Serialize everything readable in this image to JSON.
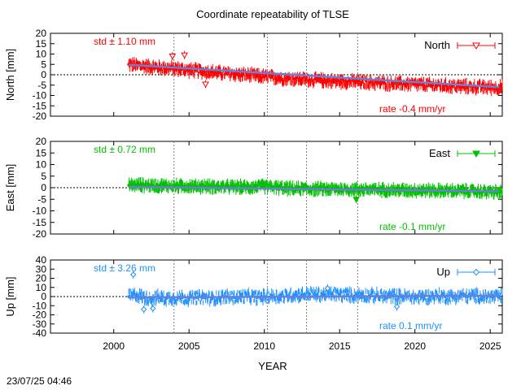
{
  "title": "Coordinate repeatability of TLSE",
  "xlabel": "YEAR",
  "footer_timestamp": "23/07/25 04:46",
  "x_ticks": [
    "2000",
    "2005",
    "2010",
    "2015",
    "2020",
    "2025"
  ],
  "colors": {
    "north": "#ff0000",
    "east": "#00c000",
    "up": "#1e90ff",
    "trend": "#6a7fd8",
    "axis": "#000000",
    "grid": "#808080"
  },
  "chart_data": [
    {
      "type": "line",
      "panel": "north",
      "ylabel": "North [mm]",
      "ylim": [
        -20,
        20
      ],
      "yticks": [
        "20",
        "15",
        "10",
        "5",
        "0",
        "-5",
        "-10",
        "-15",
        "-20"
      ],
      "xlim": [
        1995.8,
        2025.8
      ],
      "std_label": "std ± 1.10 mm",
      "rate_label": "rate -0.4 mm/yr",
      "legend": {
        "label": "North",
        "position": "top-right",
        "marker": "triangle-down-open"
      },
      "series": [
        {
          "name": "North",
          "x": [
            2001.0,
            2001.5,
            2002.0,
            2002.5,
            2003.0,
            2003.5,
            2004.0,
            2004.5,
            2005.0,
            2005.5,
            2006.0,
            2006.5,
            2007.0,
            2007.5,
            2008.0,
            2008.5,
            2009.0,
            2009.5,
            2010.0,
            2010.5,
            2011.0,
            2011.5,
            2012.0,
            2012.5,
            2013.0,
            2013.5,
            2014.0,
            2014.5,
            2015.0,
            2015.5,
            2016.0,
            2016.5,
            2017.0,
            2017.5,
            2018.0,
            2018.5,
            2019.0,
            2019.5,
            2020.0,
            2020.5,
            2021.0,
            2021.5,
            2022.0,
            2022.5,
            2023.0,
            2023.5,
            2024.0,
            2024.5,
            2025.0,
            2025.5
          ],
          "y": [
            5.0,
            4.5,
            4.3,
            3.8,
            3.5,
            3.2,
            3.0,
            2.6,
            2.2,
            2.0,
            1.6,
            1.3,
            1.0,
            0.6,
            0.3,
            0.0,
            -0.3,
            -0.6,
            -0.9,
            -1.2,
            -1.5,
            -1.7,
            -2.0,
            -2.2,
            -2.4,
            -2.6,
            -2.8,
            -3.0,
            -3.2,
            -3.3,
            -3.5,
            -3.6,
            -3.8,
            -3.9,
            -4.1,
            -4.2,
            -4.4,
            -4.5,
            -4.7,
            -4.8,
            -5.0,
            -5.1,
            -5.3,
            -5.4,
            -5.6,
            -5.7,
            -5.9,
            -6.0,
            -6.1,
            -6.2
          ]
        }
      ],
      "outliers": {
        "x": [
          2003.9,
          2004.7,
          2006.1
        ],
        "y": [
          9.0,
          9.5,
          -4.5
        ]
      },
      "trend": {
        "x": [
          2001.0,
          2025.6
        ],
        "y": [
          4.8,
          -6.0
        ]
      }
    },
    {
      "type": "line",
      "panel": "east",
      "ylabel": "East [mm]",
      "ylim": [
        -20,
        20
      ],
      "yticks": [
        "20",
        "15",
        "10",
        "5",
        "0",
        "-5",
        "-10",
        "-15",
        "-20"
      ],
      "xlim": [
        1995.8,
        2025.8
      ],
      "std_label": "std ± 0.72 mm",
      "rate_label": "rate -0.1 mm/yr",
      "legend": {
        "label": "East",
        "position": "top-right",
        "marker": "triangle-down-filled"
      },
      "series": [
        {
          "name": "East",
          "x": [
            2001.0,
            2001.5,
            2002.0,
            2002.5,
            2003.0,
            2003.5,
            2004.0,
            2004.5,
            2005.0,
            2005.5,
            2006.0,
            2006.5,
            2007.0,
            2007.5,
            2008.0,
            2008.5,
            2009.0,
            2009.5,
            2010.0,
            2010.5,
            2011.0,
            2011.5,
            2012.0,
            2012.5,
            2013.0,
            2013.5,
            2014.0,
            2014.5,
            2015.0,
            2015.5,
            2016.0,
            2016.5,
            2017.0,
            2017.5,
            2018.0,
            2018.5,
            2019.0,
            2019.5,
            2020.0,
            2020.5,
            2021.0,
            2021.5,
            2022.0,
            2022.5,
            2023.0,
            2023.5,
            2024.0,
            2024.5,
            2025.0,
            2025.5
          ],
          "y": [
            1.0,
            1.2,
            1.1,
            1.0,
            0.9,
            0.8,
            0.8,
            0.7,
            0.6,
            0.5,
            0.6,
            0.5,
            0.4,
            0.4,
            0.3,
            0.3,
            0.2,
            0.5,
            0.6,
            0.3,
            0.0,
            -0.3,
            -0.5,
            -0.4,
            -0.5,
            -0.6,
            -0.5,
            -0.7,
            -0.6,
            -0.7,
            -0.8,
            -0.7,
            -0.8,
            -0.9,
            -0.9,
            -1.0,
            -1.0,
            -1.1,
            -1.1,
            -1.2,
            -1.2,
            -1.3,
            -1.3,
            -1.4,
            -1.4,
            -1.5,
            -1.6,
            -1.7,
            -1.8,
            -1.9
          ]
        }
      ],
      "outliers": {
        "x": [
          2016.1
        ],
        "y": [
          -5.0
        ]
      },
      "trend": {
        "x": [
          2001.0,
          2025.6
        ],
        "y": [
          0.3,
          -1.6
        ]
      }
    },
    {
      "type": "line",
      "panel": "up",
      "ylabel": "Up [mm]",
      "ylim": [
        -40,
        40
      ],
      "yticks": [
        "40",
        "30",
        "20",
        "10",
        "0",
        "-10",
        "-20",
        "-30",
        "-40"
      ],
      "xlim": [
        1995.8,
        2025.8
      ],
      "std_label": "std ± 3.26 mm",
      "rate_label": "rate  0.1 mm/yr",
      "legend": {
        "label": "Up",
        "position": "top-right",
        "marker": "diamond-open"
      },
      "series": [
        {
          "name": "Up",
          "x": [
            2001.0,
            2001.5,
            2002.0,
            2002.5,
            2003.0,
            2003.5,
            2004.0,
            2004.5,
            2005.0,
            2005.5,
            2006.0,
            2006.5,
            2007.0,
            2007.5,
            2008.0,
            2008.5,
            2009.0,
            2009.5,
            2010.0,
            2010.5,
            2011.0,
            2011.5,
            2012.0,
            2012.5,
            2013.0,
            2013.5,
            2014.0,
            2014.5,
            2015.0,
            2015.5,
            2016.0,
            2016.5,
            2017.0,
            2017.5,
            2018.0,
            2018.5,
            2019.0,
            2019.5,
            2020.0,
            2020.5,
            2021.0,
            2021.5,
            2022.0,
            2022.5,
            2023.0,
            2023.5,
            2024.0,
            2024.5,
            2025.0,
            2025.5
          ],
          "y": [
            0.0,
            2.0,
            -1.0,
            -2.0,
            -1.0,
            -2.0,
            -1.0,
            -1.0,
            -2.0,
            -1.0,
            -1.0,
            -2.0,
            -1.0,
            0.0,
            -1.0,
            0.0,
            0.0,
            -1.0,
            0.0,
            1.0,
            0.0,
            1.0,
            2.0,
            2.0,
            3.0,
            2.0,
            2.0,
            3.0,
            2.0,
            2.0,
            1.0,
            2.0,
            1.0,
            1.0,
            0.0,
            1.0,
            0.0,
            0.0,
            -1.0,
            0.0,
            0.0,
            1.0,
            0.0,
            0.0,
            1.0,
            0.0,
            1.0,
            0.0,
            0.0,
            0.0
          ]
        }
      ],
      "outliers": {
        "x": [
          2001.3,
          2002.0,
          2002.6,
          2018.8,
          2014.2
        ],
        "y": [
          24.0,
          -14.0,
          -13.0,
          -11.0,
          9.0
        ]
      },
      "trend": {
        "x": [
          2001.0,
          2025.6
        ],
        "y": [
          -1.0,
          1.0
        ]
      }
    }
  ]
}
